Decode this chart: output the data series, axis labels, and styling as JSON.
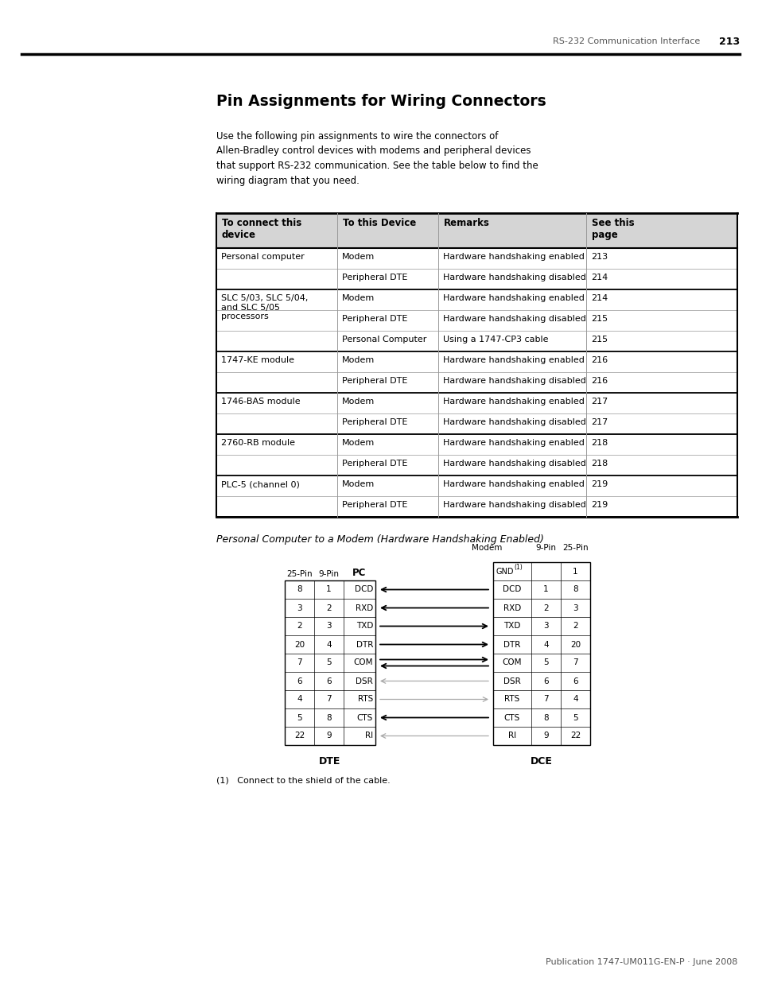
{
  "page_header_text": "RS-232 Communication Interface",
  "page_number": "213",
  "title": "Pin Assignments for Wiring Connectors",
  "intro_text": "Use the following pin assignments to wire the connectors of\nAllen-Bradley control devices with modems and peripheral devices\nthat support RS-232 communication. See the table below to find the\nwiring diagram that you need.",
  "table_headers": [
    "To connect this\ndevice",
    "To this Device",
    "Remarks",
    "See this\npage"
  ],
  "table_data": [
    [
      "Personal computer",
      "Modem",
      "Hardware handshaking enabled",
      "213"
    ],
    [
      "",
      "Peripheral DTE",
      "Hardware handshaking disabled",
      "214"
    ],
    [
      "SLC 5/03, SLC 5/04,\nand SLC 5/05\nprocessors",
      "Modem",
      "Hardware handshaking enabled",
      "214"
    ],
    [
      "",
      "Peripheral DTE",
      "Hardware handshaking disabled",
      "215"
    ],
    [
      "",
      "Personal Computer",
      "Using a 1747-CP3 cable",
      "215"
    ],
    [
      "1747-KE module",
      "Modem",
      "Hardware handshaking enabled",
      "216"
    ],
    [
      "",
      "Peripheral DTE",
      "Hardware handshaking disabled",
      "216"
    ],
    [
      "1746-BAS module",
      "Modem",
      "Hardware handshaking enabled",
      "217"
    ],
    [
      "",
      "Peripheral DTE",
      "Hardware handshaking disabled",
      "217"
    ],
    [
      "2760-RB module",
      "Modem",
      "Hardware handshaking enabled",
      "218"
    ],
    [
      "",
      "Peripheral DTE",
      "Hardware handshaking disabled",
      "218"
    ],
    [
      "PLC-5 (channel 0)",
      "Modem",
      "Hardware handshaking enabled",
      "219"
    ],
    [
      "",
      "Peripheral DTE",
      "Hardware handshaking disabled",
      "219"
    ]
  ],
  "diagram_title": "Personal Computer to a Modem (Hardware Handshaking Enabled)",
  "dte_rows": [
    [
      "8",
      "1",
      "DCD"
    ],
    [
      "3",
      "2",
      "RXD"
    ],
    [
      "2",
      "3",
      "TXD"
    ],
    [
      "20",
      "4",
      "DTR"
    ],
    [
      "7",
      "5",
      "COM"
    ],
    [
      "6",
      "6",
      "DSR"
    ],
    [
      "4",
      "7",
      "RTS"
    ],
    [
      "5",
      "8",
      "CTS"
    ],
    [
      "22",
      "9",
      "RI"
    ]
  ],
  "dce_rows": [
    [
      "GND(1)",
      "",
      "1"
    ],
    [
      "DCD",
      "1",
      "8"
    ],
    [
      "RXD",
      "2",
      "3"
    ],
    [
      "TXD",
      "3",
      "2"
    ],
    [
      "DTR",
      "4",
      "20"
    ],
    [
      "COM",
      "5",
      "7"
    ],
    [
      "DSR",
      "6",
      "6"
    ],
    [
      "RTS",
      "7",
      "4"
    ],
    [
      "CTS",
      "8",
      "5"
    ],
    [
      "RI",
      "9",
      "22"
    ]
  ],
  "arrow_directions": [
    "left",
    "left",
    "right",
    "right",
    "both",
    "left_gray",
    "right_gray",
    "left",
    "left_gray"
  ],
  "footnote": "(1)   Connect to the shield of the cable.",
  "footer_text": "Publication 1747-UM011G-EN-P · June 2008",
  "bg_color": "#ffffff"
}
